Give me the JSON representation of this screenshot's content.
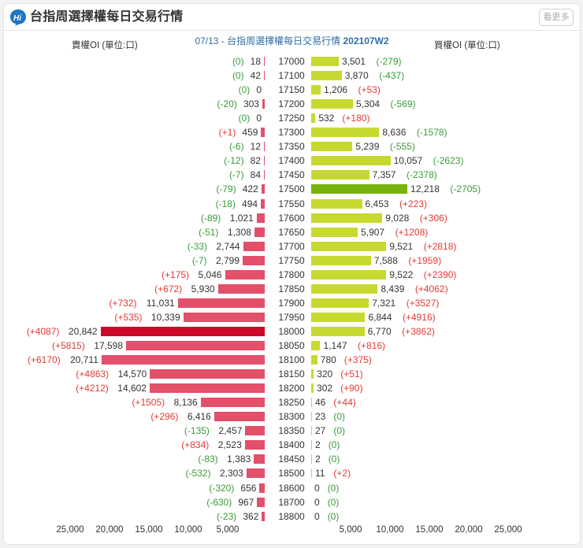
{
  "header": {
    "title": "台指周選擇權每日交易行情",
    "more_label": "看更多",
    "logo_icon": "hi-speech-bubble-icon"
  },
  "chart_title": {
    "date": "07/13",
    "separator": " - ",
    "name": "台指周選擇權每日交易行情 ",
    "week": "202107W2"
  },
  "axes": {
    "left_label": "賣權OI (單位:口)",
    "right_label": "買權OI (單位:口)",
    "left_ticks": [
      "25,000",
      "20,000",
      "15,000",
      "10,000",
      "5,000"
    ],
    "right_ticks": [
      "5,000",
      "10,000",
      "15,000",
      "20,000",
      "25,000"
    ]
  },
  "colors": {
    "put_bar": "#e3506a",
    "put_bar_max": "#cc0a28",
    "call_bar": "#c7d930",
    "call_bar_max": "#76b20e",
    "increase": "#e53935",
    "decrease": "#3a9c3a",
    "title_blue": "#2f6ea8"
  },
  "chart_data": {
    "type": "bar",
    "title": "07/13 - 台指周選擇權每日交易行情 202107W2",
    "orientation": "horizontal-butterfly",
    "xlabel_left": "賣權OI (單位:口)",
    "xlabel_right": "買權OI (單位:口)",
    "xlim": [
      0,
      25000
    ],
    "categories": [
      "17000",
      "17100",
      "17150",
      "17200",
      "17250",
      "17300",
      "17350",
      "17400",
      "17450",
      "17500",
      "17550",
      "17600",
      "17650",
      "17700",
      "17750",
      "17800",
      "17850",
      "17900",
      "17950",
      "18000",
      "18050",
      "18100",
      "18150",
      "18200",
      "18250",
      "18300",
      "18350",
      "18400",
      "18450",
      "18500",
      "18600",
      "18700",
      "18800"
    ],
    "series": [
      {
        "name": "賣權OI (Put OI)",
        "values": [
          18,
          42,
          0,
          303,
          0,
          459,
          12,
          82,
          84,
          422,
          494,
          1021,
          1308,
          2744,
          2799,
          5046,
          5930,
          11031,
          10339,
          20842,
          17598,
          20711,
          14570,
          14602,
          8136,
          6416,
          2457,
          2523,
          1383,
          2303,
          656,
          967,
          362
        ]
      },
      {
        "name": "賣權OI變化 (Put OI change)",
        "values": [
          0,
          0,
          0,
          -20,
          0,
          1,
          -6,
          -12,
          -7,
          -79,
          -18,
          -89,
          -51,
          -33,
          -7,
          175,
          672,
          732,
          535,
          4087,
          5815,
          6170,
          4863,
          4212,
          1505,
          296,
          -135,
          834,
          -83,
          -532,
          -320,
          -630,
          -23
        ]
      },
      {
        "name": "買權OI (Call OI)",
        "values": [
          3501,
          3870,
          1206,
          5304,
          532,
          8636,
          5239,
          10057,
          7357,
          12218,
          6453,
          9028,
          5907,
          9521,
          7588,
          9522,
          8439,
          7321,
          6844,
          6770,
          1147,
          780,
          320,
          302,
          46,
          23,
          27,
          2,
          2,
          11,
          0,
          0,
          0
        ]
      },
      {
        "name": "買權OI變化 (Call OI change)",
        "values": [
          -279,
          -437,
          53,
          -569,
          180,
          -1578,
          -555,
          -2623,
          -2378,
          -2705,
          223,
          306,
          1208,
          2818,
          1959,
          2390,
          4062,
          3527,
          4916,
          3862,
          816,
          375,
          51,
          90,
          44,
          0,
          0,
          0,
          0,
          2,
          0,
          0,
          0
        ]
      }
    ],
    "max_put_strike": "18000",
    "max_call_strike": "17500"
  },
  "rows": [
    {
      "strike": "17000",
      "put": "18",
      "put_chg": "(0)",
      "call": "3,501",
      "call_chg": "(-279)"
    },
    {
      "strike": "17100",
      "put": "42",
      "put_chg": "(0)",
      "call": "3,870",
      "call_chg": "(-437)"
    },
    {
      "strike": "17150",
      "put": "0",
      "put_chg": "(0)",
      "call": "1,206",
      "call_chg": "(+53)"
    },
    {
      "strike": "17200",
      "put": "303",
      "put_chg": "(-20)",
      "call": "5,304",
      "call_chg": "(-569)"
    },
    {
      "strike": "17250",
      "put": "0",
      "put_chg": "(0)",
      "call": "532",
      "call_chg": "(+180)"
    },
    {
      "strike": "17300",
      "put": "459",
      "put_chg": "(+1)",
      "call": "8,636",
      "call_chg": "(-1578)"
    },
    {
      "strike": "17350",
      "put": "12",
      "put_chg": "(-6)",
      "call": "5,239",
      "call_chg": "(-555)"
    },
    {
      "strike": "17400",
      "put": "82",
      "put_chg": "(-12)",
      "call": "10,057",
      "call_chg": "(-2623)"
    },
    {
      "strike": "17450",
      "put": "84",
      "put_chg": "(-7)",
      "call": "7,357",
      "call_chg": "(-2378)"
    },
    {
      "strike": "17500",
      "put": "422",
      "put_chg": "(-79)",
      "call": "12,218",
      "call_chg": "(-2705)"
    },
    {
      "strike": "17550",
      "put": "494",
      "put_chg": "(-18)",
      "call": "6,453",
      "call_chg": "(+223)"
    },
    {
      "strike": "17600",
      "put": "1,021",
      "put_chg": "(-89)",
      "call": "9,028",
      "call_chg": "(+306)"
    },
    {
      "strike": "17650",
      "put": "1,308",
      "put_chg": "(-51)",
      "call": "5,907",
      "call_chg": "(+1208)"
    },
    {
      "strike": "17700",
      "put": "2,744",
      "put_chg": "(-33)",
      "call": "9,521",
      "call_chg": "(+2818)"
    },
    {
      "strike": "17750",
      "put": "2,799",
      "put_chg": "(-7)",
      "call": "7,588",
      "call_chg": "(+1959)"
    },
    {
      "strike": "17800",
      "put": "5,046",
      "put_chg": "(+175)",
      "call": "9,522",
      "call_chg": "(+2390)"
    },
    {
      "strike": "17850",
      "put": "5,930",
      "put_chg": "(+672)",
      "call": "8,439",
      "call_chg": "(+4062)"
    },
    {
      "strike": "17900",
      "put": "11,031",
      "put_chg": "(+732)",
      "call": "7,321",
      "call_chg": "(+3527)"
    },
    {
      "strike": "17950",
      "put": "10,339",
      "put_chg": "(+535)",
      "call": "6,844",
      "call_chg": "(+4916)"
    },
    {
      "strike": "18000",
      "put": "20,842",
      "put_chg": "(+4087)",
      "call": "6,770",
      "call_chg": "(+3862)"
    },
    {
      "strike": "18050",
      "put": "17,598",
      "put_chg": "(+5815)",
      "call": "1,147",
      "call_chg": "(+816)"
    },
    {
      "strike": "18100",
      "put": "20,711",
      "put_chg": "(+6170)",
      "call": "780",
      "call_chg": "(+375)"
    },
    {
      "strike": "18150",
      "put": "14,570",
      "put_chg": "(+4863)",
      "call": "320",
      "call_chg": "(+51)"
    },
    {
      "strike": "18200",
      "put": "14,602",
      "put_chg": "(+4212)",
      "call": "302",
      "call_chg": "(+90)"
    },
    {
      "strike": "18250",
      "put": "8,136",
      "put_chg": "(+1505)",
      "call": "46",
      "call_chg": "(+44)"
    },
    {
      "strike": "18300",
      "put": "6,416",
      "put_chg": "(+296)",
      "call": "23",
      "call_chg": "(0)"
    },
    {
      "strike": "18350",
      "put": "2,457",
      "put_chg": "(-135)",
      "call": "27",
      "call_chg": "(0)"
    },
    {
      "strike": "18400",
      "put": "2,523",
      "put_chg": "(+834)",
      "call": "2",
      "call_chg": "(0)"
    },
    {
      "strike": "18450",
      "put": "1,383",
      "put_chg": "(-83)",
      "call": "2",
      "call_chg": "(0)"
    },
    {
      "strike": "18500",
      "put": "2,303",
      "put_chg": "(-532)",
      "call": "11",
      "call_chg": "(+2)"
    },
    {
      "strike": "18600",
      "put": "656",
      "put_chg": "(-320)",
      "call": "0",
      "call_chg": "(0)"
    },
    {
      "strike": "18700",
      "put": "967",
      "put_chg": "(-630)",
      "call": "0",
      "call_chg": "(0)"
    },
    {
      "strike": "18800",
      "put": "362",
      "put_chg": "(-23)",
      "call": "0",
      "call_chg": "(0)"
    }
  ]
}
